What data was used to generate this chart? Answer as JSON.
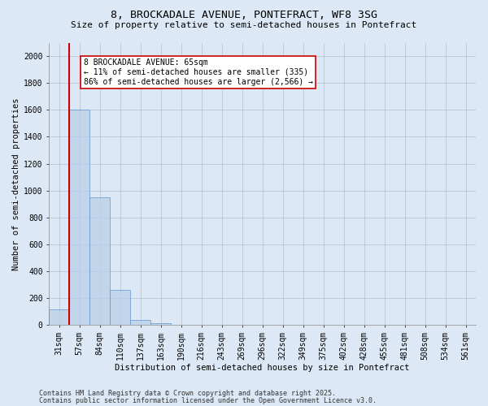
{
  "title_line1": "8, BROCKADALE AVENUE, PONTEFRACT, WF8 3SG",
  "title_line2": "Size of property relative to semi-detached houses in Pontefract",
  "xlabel": "Distribution of semi-detached houses by size in Pontefract",
  "ylabel": "Number of semi-detached properties",
  "bin_labels": [
    "31sqm",
    "57sqm",
    "84sqm",
    "110sqm",
    "137sqm",
    "163sqm",
    "190sqm",
    "216sqm",
    "243sqm",
    "269sqm",
    "296sqm",
    "322sqm",
    "349sqm",
    "375sqm",
    "402sqm",
    "428sqm",
    "455sqm",
    "481sqm",
    "508sqm",
    "534sqm",
    "561sqm"
  ],
  "bar_heights": [
    115,
    1600,
    950,
    260,
    38,
    15,
    0,
    0,
    0,
    0,
    0,
    0,
    0,
    0,
    0,
    0,
    0,
    0,
    0,
    0,
    0
  ],
  "bar_color": "#b8d0e8",
  "bar_edgecolor": "#6699cc",
  "bar_alpha": 0.75,
  "vline_color": "#cc0000",
  "annotation_text": "8 BROCKADALE AVENUE: 65sqm\n← 11% of semi-detached houses are smaller (335)\n86% of semi-detached houses are larger (2,566) →",
  "ylim": [
    0,
    2100
  ],
  "yticks": [
    0,
    200,
    400,
    600,
    800,
    1000,
    1200,
    1400,
    1600,
    1800,
    2000
  ],
  "footnote_line1": "Contains HM Land Registry data © Crown copyright and database right 2025.",
  "footnote_line2": "Contains public sector information licensed under the Open Government Licence v3.0.",
  "bg_color": "#dce8f5",
  "plot_bg_color": "#dce8f5",
  "title_fontsize": 9.5,
  "subtitle_fontsize": 8,
  "axis_label_fontsize": 7.5,
  "tick_fontsize": 7,
  "annotation_fontsize": 7,
  "footnote_fontsize": 6
}
